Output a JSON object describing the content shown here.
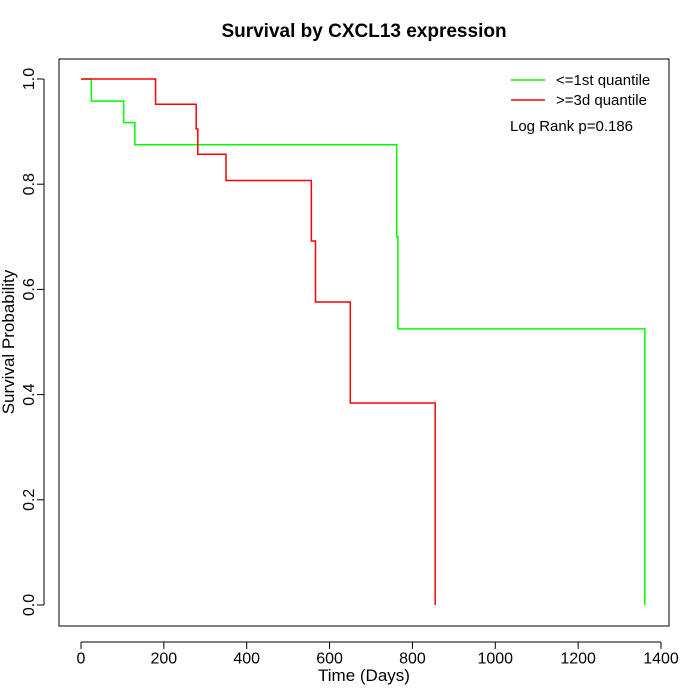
{
  "chart_data": {
    "type": "line",
    "title": "Survival by CXCL13 expression",
    "xlabel": "Time (Days)",
    "ylabel": "Survival Probability",
    "xlim": [
      0,
      1400
    ],
    "ylim": [
      0,
      1.0
    ],
    "x_ticks": [
      "0",
      "200",
      "400",
      "600",
      "800",
      "1000",
      "1200",
      "1400"
    ],
    "y_ticks": [
      "0.0",
      "0.2",
      "0.4",
      "0.6",
      "0.8",
      "1.0"
    ],
    "annotation": "Log Rank p=0.186",
    "legend_position": "top-right",
    "series": [
      {
        "name": "<=1st quantile",
        "color": "#00ff00",
        "steps": [
          [
            0,
            1.0
          ],
          [
            25,
            0.958
          ],
          [
            103,
            0.917
          ],
          [
            130,
            0.875
          ],
          [
            762,
            0.7
          ],
          [
            765,
            0.525
          ],
          [
            1361,
            0.0
          ]
        ],
        "end": 1361
      },
      {
        "name": ">=3d quantile",
        "color": "#ff0000",
        "steps": [
          [
            0,
            1.0
          ],
          [
            180,
            0.952
          ],
          [
            278,
            0.905
          ],
          [
            282,
            0.857
          ],
          [
            350,
            0.807
          ],
          [
            556,
            0.692
          ],
          [
            566,
            0.576
          ],
          [
            650,
            0.384
          ],
          [
            855,
            0.0
          ]
        ],
        "end": 855
      }
    ]
  }
}
